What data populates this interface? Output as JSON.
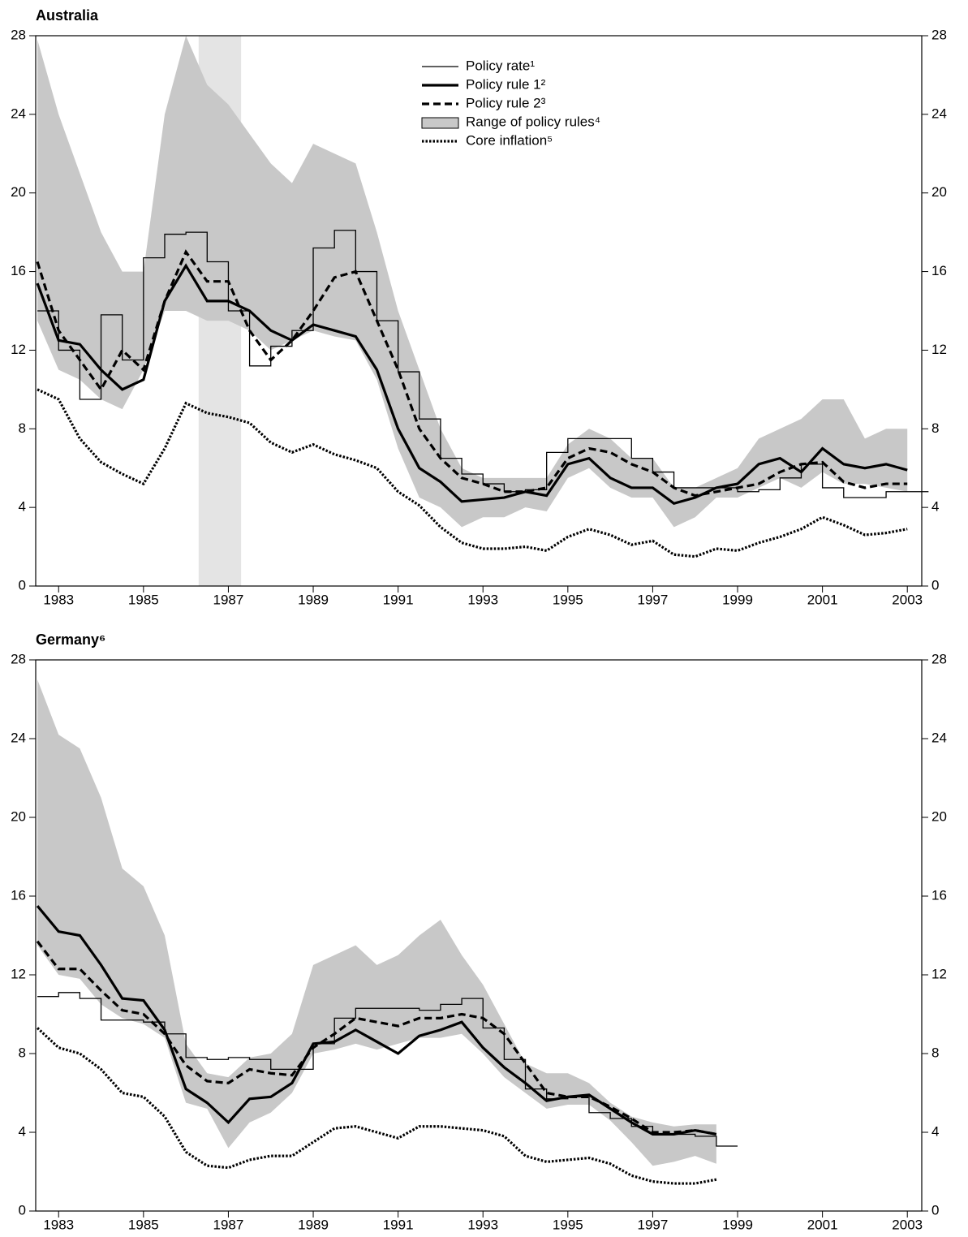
{
  "chart_data": [
    {
      "type": "line",
      "title": "Australia",
      "x": [
        1982.5,
        1983,
        1983.5,
        1984,
        1984.5,
        1985,
        1985.5,
        1986,
        1986.5,
        1987,
        1987.5,
        1988,
        1988.5,
        1989,
        1989.5,
        1990,
        1990.5,
        1991,
        1991.5,
        1992,
        1992.5,
        1993,
        1993.5,
        1994,
        1994.5,
        1995,
        1995.5,
        1996,
        1996.5,
        1997,
        1997.5,
        1998,
        1998.5,
        1999,
        1999.5,
        2000,
        2000.5,
        2001,
        2001.5,
        2002,
        2002.5,
        2003
      ],
      "xlim": [
        1982.46,
        2003.34
      ],
      "xticks": [
        1983,
        1985,
        1987,
        1989,
        1991,
        1993,
        1995,
        1997,
        1999,
        2001,
        2003
      ],
      "ylim": [
        0,
        28
      ],
      "yticks": [
        0,
        4,
        8,
        12,
        16,
        20,
        24,
        28
      ],
      "shaded_span": [
        1986.3,
        1987.3
      ],
      "shaded_color": "#e4e4e4",
      "legend": true,
      "range": {
        "name": "Range of policy rules⁴",
        "color": "#c8c8c8",
        "low": [
          13.5,
          11,
          10.5,
          9.5,
          9,
          11,
          14,
          14,
          13.5,
          13.5,
          13,
          12,
          12.5,
          13,
          12.7,
          12.5,
          10.5,
          7,
          4.5,
          4,
          3,
          3.5,
          3.5,
          4,
          3.8,
          5.5,
          6,
          5,
          4.5,
          4.5,
          3,
          3.5,
          4.5,
          4.5,
          5,
          5.5,
          5,
          5.8,
          5.2,
          5.2,
          5,
          4.8
        ],
        "high": [
          27.8,
          24,
          21,
          18,
          16,
          16,
          24,
          28,
          25.5,
          24.5,
          23,
          21.5,
          20.5,
          22.5,
          22,
          21.5,
          18,
          14,
          11,
          8,
          6,
          5.5,
          5.5,
          5.5,
          5.5,
          7.2,
          8,
          7.5,
          6.5,
          6.5,
          5,
          5,
          5.5,
          6,
          7.5,
          8,
          8.5,
          9.5,
          9.5,
          7.5,
          8,
          8
        ]
      },
      "series": [
        {
          "name": "Policy rate¹",
          "color": "#000",
          "line_width": 1.3,
          "dash": "solid",
          "step": true,
          "values": [
            14,
            12,
            9.5,
            13.8,
            11.5,
            16.7,
            17.9,
            18,
            16.5,
            14,
            11.2,
            12.2,
            13,
            17.2,
            18.1,
            16,
            13.5,
            10.9,
            8.5,
            6.5,
            5.7,
            5.2,
            4.8,
            4.9,
            6.8,
            7.5,
            7.5,
            7.5,
            6.5,
            5.8,
            5,
            5,
            5,
            4.8,
            4.9,
            5.5,
            6.2,
            5,
            4.5,
            4.5,
            4.8,
            4.8
          ]
        },
        {
          "name": "Policy rule 1²",
          "color": "#000",
          "line_width": 3.2,
          "dash": "solid",
          "step": false,
          "values": [
            15.4,
            12.5,
            12.3,
            11,
            10,
            10.5,
            14.5,
            16.3,
            14.5,
            14.5,
            14,
            13,
            12.5,
            13.3,
            13,
            12.7,
            11,
            8,
            6,
            5.3,
            4.3,
            4.4,
            4.5,
            4.8,
            4.6,
            6.2,
            6.5,
            5.5,
            5,
            5,
            4.2,
            4.5,
            5,
            5.2,
            6.2,
            6.5,
            5.8,
            7,
            6.2,
            6,
            6.2,
            5.9
          ]
        },
        {
          "name": "Policy rule 2³",
          "color": "#000",
          "line_width": 3.2,
          "dash": "dashed",
          "step": false,
          "values": [
            16.5,
            13,
            11.5,
            10,
            12,
            11,
            14.5,
            17,
            15.5,
            15.5,
            13,
            11.5,
            12.5,
            14,
            15.7,
            16,
            13.5,
            11,
            8,
            6.5,
            5.5,
            5.2,
            4.8,
            4.8,
            5,
            6.5,
            7,
            6.8,
            6.2,
            5.8,
            5,
            4.6,
            4.8,
            5,
            5.2,
            5.8,
            6.2,
            6.3,
            5.3,
            5,
            5.2,
            5.2
          ]
        },
        {
          "name": "Core inflation⁵",
          "color": "#000",
          "line_width": 3.2,
          "dash": "dotted",
          "step": false,
          "values": [
            10,
            9.5,
            7.5,
            6.3,
            5.7,
            5.2,
            7,
            9.3,
            8.8,
            8.6,
            8.3,
            7.3,
            6.8,
            7.2,
            6.7,
            6.4,
            6,
            4.8,
            4.1,
            3,
            2.2,
            1.9,
            1.9,
            2,
            1.8,
            2.5,
            2.9,
            2.6,
            2.1,
            2.3,
            1.6,
            1.5,
            1.9,
            1.8,
            2.2,
            2.5,
            2.9,
            3.5,
            3.1,
            2.6,
            2.7,
            2.9
          ]
        }
      ]
    },
    {
      "type": "line",
      "title": "Germany⁶",
      "x": [
        1982.5,
        1983,
        1983.5,
        1984,
        1984.5,
        1985,
        1985.5,
        1986,
        1986.5,
        1987,
        1987.5,
        1988,
        1988.5,
        1989,
        1989.5,
        1990,
        1990.5,
        1991,
        1991.5,
        1992,
        1992.5,
        1993,
        1993.5,
        1994,
        1994.5,
        1995,
        1995.5,
        1996,
        1996.5,
        1997,
        1997.5,
        1998,
        1998.5
      ],
      "xlim": [
        1982.46,
        2003.34
      ],
      "xticks": [
        1983,
        1985,
        1987,
        1989,
        1991,
        1993,
        1995,
        1997,
        1999,
        2001,
        2003
      ],
      "ylim": [
        0,
        28
      ],
      "yticks": [
        0,
        4,
        8,
        12,
        16,
        20,
        24,
        28
      ],
      "legend": false,
      "range": {
        "color": "#c8c8c8",
        "low": [
          13.5,
          12,
          11.8,
          10.5,
          9.8,
          9.5,
          8.8,
          5.5,
          5.2,
          3.2,
          4.5,
          5,
          6,
          8,
          8.2,
          8.5,
          8.2,
          8.5,
          8.8,
          8.8,
          9,
          8,
          6.8,
          6,
          5.2,
          5.4,
          5.4,
          4.6,
          3.5,
          2.3,
          2.5,
          2.8,
          2.4
        ],
        "high": [
          27,
          24.2,
          23.5,
          21,
          17.4,
          16.5,
          14,
          8.5,
          7,
          6.8,
          7.8,
          8,
          9,
          12.5,
          13,
          13.5,
          12.5,
          13,
          14,
          14.8,
          13,
          11.5,
          9.5,
          7.5,
          7,
          7,
          6.5,
          5.5,
          4.8,
          4.5,
          4.3,
          4.4,
          4.4
        ]
      },
      "series": [
        {
          "color": "#000",
          "line_width": 1.3,
          "dash": "solid",
          "step": true,
          "values": [
            10.9,
            11.1,
            10.8,
            9.7,
            9.7,
            9.6,
            9,
            7.8,
            7.7,
            7.8,
            7.7,
            7.2,
            7.2,
            8.5,
            9.8,
            10.3,
            10.3,
            10.3,
            10.2,
            10.5,
            10.8,
            9.3,
            7.7,
            6.2,
            5.7,
            5.8,
            5,
            4.7,
            4.3,
            3.9,
            3.9,
            3.8,
            3.3
          ]
        },
        {
          "color": "#000",
          "line_width": 3.2,
          "dash": "solid",
          "step": false,
          "values": [
            15.5,
            14.2,
            14,
            12.5,
            10.8,
            10.7,
            9.2,
            6.2,
            5.5,
            4.5,
            5.7,
            5.8,
            6.5,
            8.5,
            8.6,
            9.2,
            8.6,
            8,
            8.9,
            9.2,
            9.6,
            8.3,
            7.3,
            6.5,
            5.6,
            5.8,
            5.9,
            5.2,
            4.5,
            3.9,
            3.9,
            4.1,
            3.9
          ]
        },
        {
          "color": "#000",
          "line_width": 3.2,
          "dash": "dashed",
          "step": false,
          "values": [
            13.7,
            12.3,
            12.3,
            11.2,
            10.2,
            10,
            9,
            7.4,
            6.6,
            6.5,
            7.2,
            7,
            6.9,
            8.3,
            9,
            9.8,
            9.6,
            9.4,
            9.8,
            9.8,
            10,
            9.8,
            9,
            7.5,
            6,
            5.8,
            5.8,
            5.3,
            4.7,
            4,
            4,
            4.1,
            3.9
          ]
        },
        {
          "color": "#000",
          "line_width": 3.2,
          "dash": "dotted",
          "step": false,
          "values": [
            9.3,
            8.3,
            8,
            7.2,
            6,
            5.8,
            4.8,
            3,
            2.3,
            2.2,
            2.6,
            2.8,
            2.8,
            3.5,
            4.2,
            4.3,
            4,
            3.7,
            4.3,
            4.3,
            4.2,
            4.1,
            3.8,
            2.8,
            2.5,
            2.6,
            2.7,
            2.4,
            1.8,
            1.5,
            1.4,
            1.4,
            1.6
          ]
        }
      ]
    }
  ]
}
